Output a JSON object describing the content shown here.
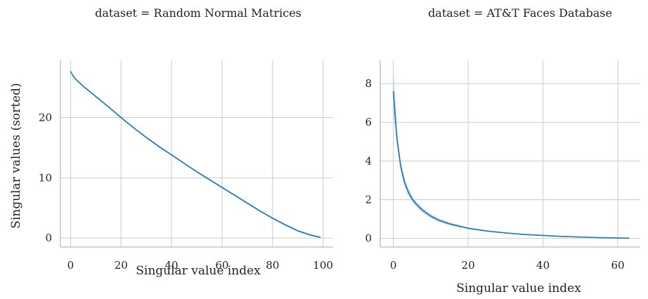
{
  "colors": {
    "line": "#1f77b4",
    "band": "#aec7e8",
    "grid": "#cccccc",
    "axis": "#bbbbbb"
  },
  "chart_data": [
    {
      "type": "line",
      "title": "dataset = Random Normal Matrices",
      "xlabel": "Singular value index",
      "ylabel": "Singular values (sorted)",
      "xlim": [
        -4,
        104
      ],
      "ylim": [
        -1.5,
        29.5
      ],
      "xticks": [
        0,
        20,
        40,
        60,
        80,
        100
      ],
      "yticks": [
        0,
        10,
        20
      ],
      "grid": true,
      "series": [
        {
          "x": [
            0,
            1,
            2,
            3,
            5,
            8,
            10,
            15,
            20,
            25,
            30,
            35,
            40,
            45,
            50,
            55,
            60,
            65,
            70,
            75,
            80,
            85,
            90,
            95,
            99
          ],
          "y": [
            27.7,
            26.9,
            26.4,
            26.0,
            25.2,
            24.2,
            23.5,
            21.8,
            20.0,
            18.3,
            16.7,
            15.2,
            13.8,
            12.4,
            11.0,
            9.7,
            8.4,
            7.1,
            5.8,
            4.5,
            3.3,
            2.2,
            1.2,
            0.5,
            0.1
          ],
          "band": 0.15
        }
      ]
    },
    {
      "type": "line",
      "title": "dataset = AT&T Faces Database",
      "xlabel": "Singular value index",
      "ylabel": "",
      "xlim": [
        -3.5,
        66
      ],
      "ylim": [
        -0.45,
        9.2
      ],
      "xticks": [
        0,
        20,
        40,
        60
      ],
      "yticks": [
        0,
        2,
        4,
        6,
        8
      ],
      "grid": true,
      "series": [
        {
          "x": [
            0,
            1,
            2,
            3,
            4,
            5,
            6,
            7,
            8,
            10,
            12,
            15,
            20,
            25,
            30,
            35,
            40,
            45,
            50,
            55,
            60,
            63
          ],
          "y": [
            7.6,
            5.1,
            3.7,
            2.9,
            2.4,
            2.05,
            1.8,
            1.6,
            1.42,
            1.15,
            0.95,
            0.75,
            0.52,
            0.38,
            0.28,
            0.2,
            0.15,
            0.1,
            0.07,
            0.04,
            0.02,
            0.01
          ],
          "band_hi": [
            8.85,
            5.45,
            3.95,
            3.1,
            2.58,
            2.2,
            1.93,
            1.72,
            1.53,
            1.25,
            1.04,
            0.82,
            0.57,
            0.42,
            0.31,
            0.23,
            0.17,
            0.12,
            0.08,
            0.05,
            0.03,
            0.02
          ],
          "band_lo": [
            6.5,
            4.75,
            3.45,
            2.7,
            2.22,
            1.9,
            1.67,
            1.48,
            1.31,
            1.05,
            0.86,
            0.68,
            0.47,
            0.34,
            0.25,
            0.17,
            0.13,
            0.08,
            0.06,
            0.03,
            0.01,
            0.0
          ]
        }
      ]
    }
  ]
}
